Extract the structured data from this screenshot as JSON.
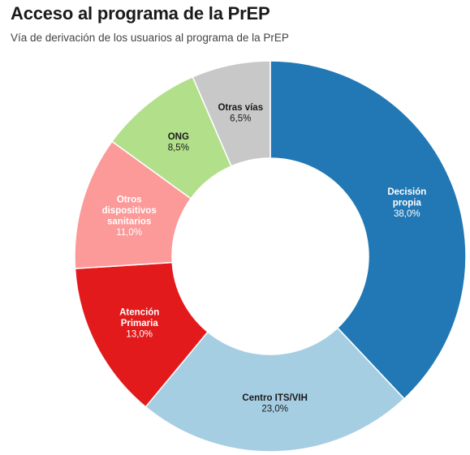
{
  "title": "Acceso al programa de la PrEP",
  "subtitle": "Vía de derivación de los usuarios al programa de la PrEP",
  "chart_data": {
    "type": "pie",
    "donut": true,
    "title": "Acceso al programa de la PrEP",
    "subtitle": "Vía de derivación de los usuarios al programa de la PrEP",
    "slices": [
      {
        "label": "Decisión propia",
        "lines": [
          "Decisión",
          "propia"
        ],
        "value": 38.0,
        "value_label": "38,0%",
        "color": "#2178b4",
        "text_color": "#ffffff"
      },
      {
        "label": "Centro ITS/VIH",
        "lines": [
          "Centro ITS/VIH"
        ],
        "value": 23.0,
        "value_label": "23,0%",
        "color": "#a6cee3",
        "text_color": "#1a1a1a"
      },
      {
        "label": "Atención Primaria",
        "lines": [
          "Atención",
          "Primaria"
        ],
        "value": 13.0,
        "value_label": "13,0%",
        "color": "#e31a1c",
        "text_color": "#ffffff"
      },
      {
        "label": "Otros dispositivos sanitarios",
        "lines": [
          "Otros",
          "dispositivos",
          "sanitarios"
        ],
        "value": 11.0,
        "value_label": "11,0%",
        "color": "#fb9a99",
        "text_color": "#ffffff"
      },
      {
        "label": "ONG",
        "lines": [
          "ONG"
        ],
        "value": 8.5,
        "value_label": "8,5%",
        "color": "#b2df8a",
        "text_color": "#1a1a1a"
      },
      {
        "label": "Otras vías",
        "lines": [
          "Otras vías"
        ],
        "value": 6.5,
        "value_label": "6,5%",
        "color": "#c8c8c8",
        "text_color": "#1a1a1a"
      }
    ]
  }
}
